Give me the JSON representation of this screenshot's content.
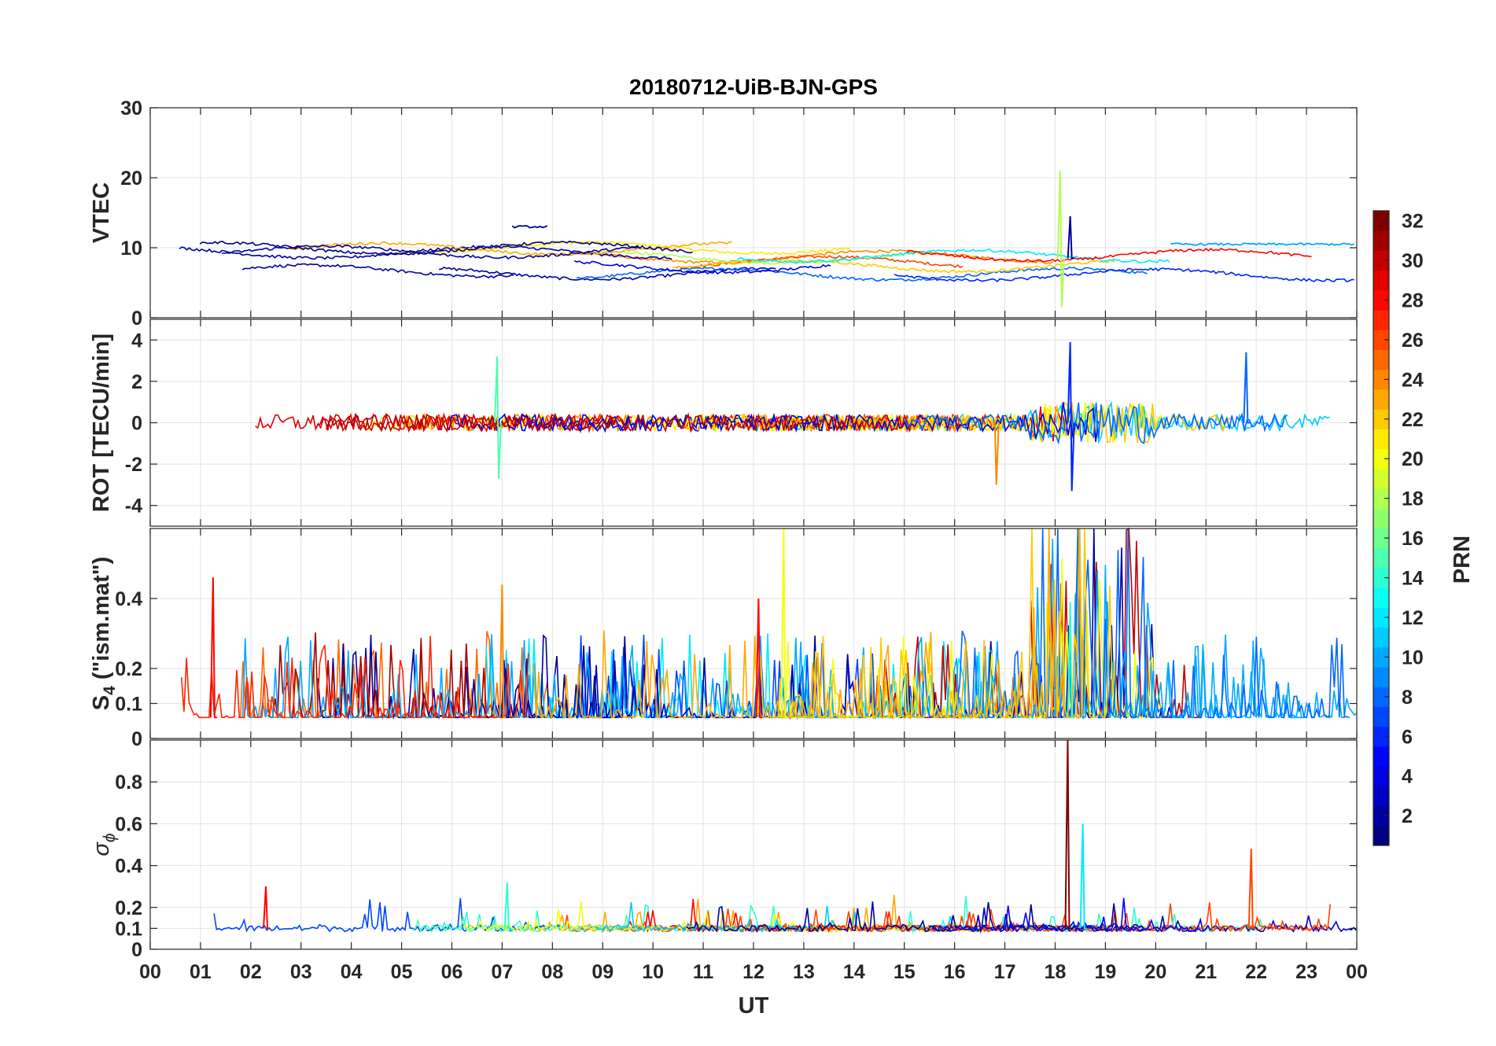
{
  "figure": {
    "title": "20180712-UiB-BJN-GPS",
    "xlabel": "UT"
  },
  "chart_data": {
    "type": "line",
    "title": "20180712-UiB-BJN-GPS",
    "x_ticks": [
      "00",
      "01",
      "02",
      "03",
      "04",
      "05",
      "06",
      "07",
      "08",
      "09",
      "10",
      "11",
      "12",
      "13",
      "14",
      "15",
      "16",
      "17",
      "18",
      "19",
      "20",
      "21",
      "22",
      "23",
      "00"
    ],
    "xlabel": "UT",
    "xlim_hours": [
      0,
      24
    ],
    "grid": true,
    "colorbar": {
      "label": "PRN",
      "range": [
        1,
        32
      ],
      "ticks": [
        2,
        4,
        6,
        8,
        10,
        12,
        14,
        16,
        18,
        20,
        22,
        24,
        26,
        28,
        30,
        32
      ],
      "colormap": "jet"
    },
    "panels": [
      {
        "id": "vtec",
        "ylabel": "VTEC",
        "ylim": [
          0,
          30
        ],
        "yticks": [
          0,
          10,
          20,
          30
        ],
        "summary": {
          "typical_value": 8.5,
          "spread": [
            6,
            12
          ]
        },
        "features": [
          {
            "time_h": 18.1,
            "prn": 18,
            "max": 21,
            "min": 1.5
          },
          {
            "time_h": 18.3,
            "prn": 2,
            "peak": 14.5
          },
          {
            "time_h_range": [
              7.2,
              7.9
            ],
            "prn": 2,
            "value": 13
          },
          {
            "time_h_range": [
              20.3,
              24
            ],
            "prn": 10,
            "value": 10.5
          }
        ]
      },
      {
        "id": "rot",
        "ylabel": "ROT [TECU/min]",
        "ylim": [
          -5,
          5
        ],
        "yticks": [
          -4,
          -2,
          0,
          2,
          4
        ],
        "summary": {
          "quiet_amplitude": 0.4,
          "active_period_h": [
            17.5,
            20
          ],
          "active_amplitude": 3
        },
        "features": [
          {
            "time_h": 6.9,
            "prn": 15,
            "max": 3.2,
            "min": -2.7
          },
          {
            "time_h": 18.3,
            "prn": 6,
            "max": 3.9,
            "min": -3.3
          },
          {
            "time_h": 21.8,
            "prn": 8,
            "max": 3.4
          },
          {
            "time_h": 16.8,
            "prn": 24,
            "min": -3.0
          }
        ]
      },
      {
        "id": "s4",
        "ylabel": "S4 (\"ism.mat\")",
        "ylabel_main": "S",
        "ylabel_sub": "4",
        "ylabel_rest": " (\"ism.mat\")",
        "ylim": [
          0,
          0.6
        ],
        "yticks": [
          0,
          0.1,
          0.2,
          0.4
        ],
        "summary": {
          "baseline": 0.06
        },
        "features": [
          {
            "time_h": 1.25,
            "prn": 28,
            "peak": 0.46
          },
          {
            "time_h": 12.6,
            "prn": 20,
            "peak": 0.6
          },
          {
            "time_h": 7.0,
            "prn": 24,
            "peak": 0.44
          },
          {
            "time_h": 12.1,
            "prn": 28,
            "peak": 0.4
          },
          {
            "time_h": 18.3,
            "prn": 14,
            "peak": 0.39
          }
        ]
      },
      {
        "id": "sigma_phi",
        "ylabel": "σ ϕ",
        "ylabel_main": "σ",
        "ylabel_sub": "ϕ",
        "ylim": [
          0,
          1
        ],
        "yticks": [
          0,
          0.1,
          0.2,
          0.4,
          0.6,
          0.8
        ],
        "summary": {
          "baseline": 0.1
        },
        "features": [
          {
            "time_h": 18.25,
            "prn": 32,
            "peak": 1.0
          },
          {
            "time_h": 18.55,
            "prn": 12,
            "peak": 0.6
          },
          {
            "time_h": 21.9,
            "prn": 26,
            "peak": 0.48
          },
          {
            "time_h": 2.3,
            "prn": 28,
            "peak": 0.3
          },
          {
            "time_h": 7.1,
            "prn": 14,
            "peak": 0.32
          }
        ]
      }
    ]
  }
}
